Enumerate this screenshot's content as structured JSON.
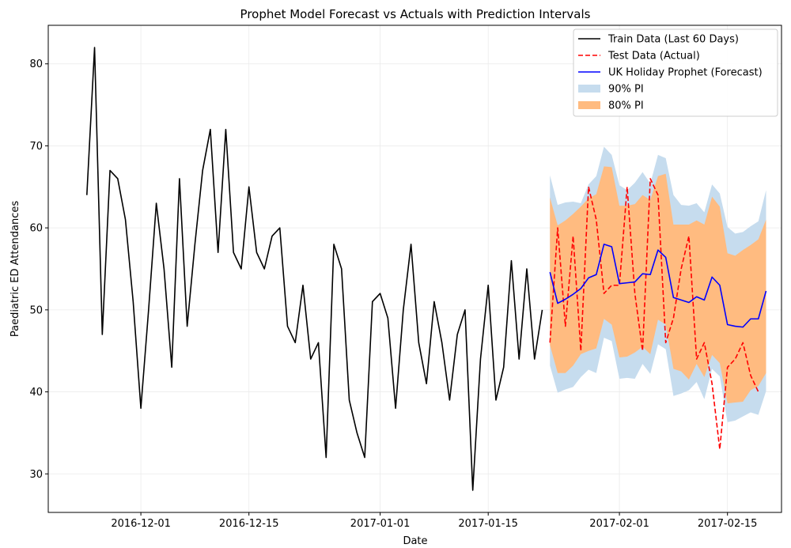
{
  "chart_data": {
    "type": "line",
    "title": "Prophet Model Forecast vs Actuals with Prediction Intervals",
    "xlabel": "Date",
    "ylabel": "Paediatric ED Attendances",
    "xlim": [
      "2016-11-19",
      "2017-02-22"
    ],
    "ylim": [
      25.3,
      84.7
    ],
    "x_ticks": [
      "2016-12-01",
      "2016-12-15",
      "2017-01-01",
      "2017-01-15",
      "2017-02-01",
      "2017-02-15"
    ],
    "y_ticks": [
      30,
      40,
      50,
      60,
      70,
      80
    ],
    "grid": true,
    "legend_position": "top-right",
    "series": [
      {
        "name": "Train Data (Last 60 Days)",
        "color": "#000000",
        "style": "solid",
        "x_start": "2016-11-24",
        "values": [
          64,
          82,
          47,
          67,
          66,
          61,
          51,
          38,
          50,
          63,
          55,
          43,
          66,
          48,
          58,
          67,
          72,
          57,
          72,
          57,
          55,
          65,
          57,
          55,
          59,
          60,
          48,
          46,
          53,
          44,
          46,
          32,
          58,
          55,
          39,
          35,
          32,
          51,
          52,
          49,
          38,
          50,
          58,
          46,
          41,
          51,
          46,
          39,
          47,
          50,
          28,
          44,
          53,
          39,
          43,
          56,
          44,
          55,
          44,
          50
        ]
      },
      {
        "name": "Test Data (Actual)",
        "color": "#ff0000",
        "style": "dashed",
        "x_start": "2017-01-23",
        "values": [
          46,
          60,
          48,
          59,
          45,
          65,
          61,
          52,
          53,
          53,
          65,
          52,
          45,
          66,
          64,
          46,
          49,
          55,
          59,
          44,
          46,
          41,
          33,
          43,
          44,
          46,
          42,
          40
        ]
      },
      {
        "name": "UK Holiday Prophet (Forecast)",
        "color": "#0000ff",
        "style": "solid",
        "x_start": "2017-01-23",
        "values": [
          54.6,
          50.8,
          51.3,
          51.9,
          52.6,
          53.9,
          54.3,
          58.0,
          57.7,
          53.2,
          53.3,
          53.4,
          54.4,
          54.3,
          57.3,
          56.4,
          51.5,
          51.2,
          50.9,
          51.6,
          51.2,
          54.0,
          53.0,
          48.2,
          48.0,
          47.9,
          48.9,
          48.9,
          52.3
        ]
      }
    ],
    "intervals": [
      {
        "name": "90% PI",
        "color": "#c6dcee",
        "x_start": "2017-01-23",
        "upper": [
          66.4,
          62.8,
          63.1,
          63.2,
          63.0,
          65.3,
          66.3,
          69.9,
          68.9,
          65.2,
          64.6,
          65.5,
          66.8,
          65.4,
          68.9,
          68.5,
          64.0,
          62.8,
          62.7,
          63.0,
          61.9,
          65.3,
          64.2,
          60.1,
          59.3,
          59.5,
          60.2,
          60.8,
          64.6
        ],
        "lower": [
          43.2,
          39.9,
          40.3,
          40.6,
          41.8,
          42.7,
          42.3,
          46.6,
          46.2,
          41.6,
          41.7,
          41.6,
          43.4,
          42.2,
          45.8,
          45.2,
          39.5,
          39.8,
          40.2,
          41.2,
          39.1,
          42.8,
          41.9,
          36.3,
          36.5,
          37.0,
          37.5,
          37.2,
          40.1
        ]
      },
      {
        "name": "80% PI",
        "color": "#ffbb80",
        "x_start": "2017-01-23",
        "upper": [
          63.7,
          60.3,
          60.9,
          61.7,
          62.6,
          63.6,
          64.1,
          67.5,
          67.4,
          62.7,
          62.7,
          62.9,
          64.0,
          63.4,
          66.3,
          66.6,
          60.4,
          60.4,
          60.4,
          60.9,
          60.4,
          63.8,
          62.6,
          56.9,
          56.6,
          57.3,
          57.9,
          58.6,
          61.0
        ],
        "lower": [
          45.7,
          42.3,
          42.3,
          43.2,
          44.6,
          45.0,
          45.3,
          48.9,
          48.2,
          44.2,
          44.3,
          44.8,
          45.5,
          44.6,
          48.8,
          48.2,
          42.8,
          42.5,
          41.5,
          43.4,
          41.8,
          44.5,
          43.5,
          38.6,
          38.7,
          38.8,
          40.2,
          40.7,
          42.3
        ]
      }
    ]
  }
}
